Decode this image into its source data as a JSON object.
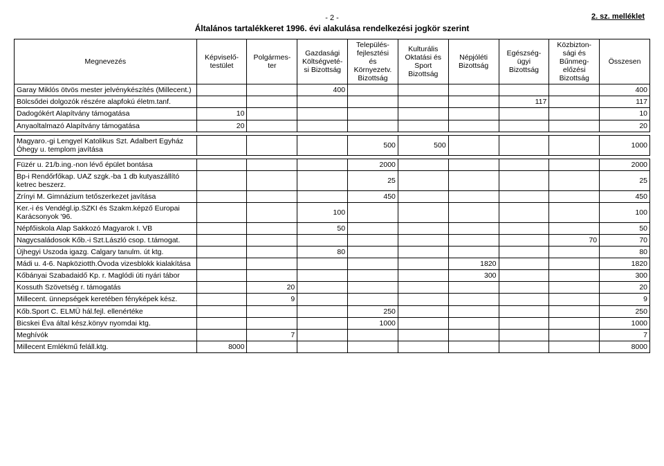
{
  "page_indicator": "- 2 -",
  "title": "Általános tartalékkeret 1996. évi alakulása rendelkezési jogkör szerint",
  "annex": "2. sz. melléklet",
  "columns": [
    "Megnevezés",
    "Képviselő-\ntestület",
    "Polgármes-\nter",
    "Gazdasági\nKöltségveté-\nsi Bizottság",
    "Település-\nfejlesztési\nés\nKörnyezetv.\nBizottság",
    "Kulturális\nOktatási és\nSport\nBizottság",
    "Népjóléti\nBizottság",
    "Egészség-\nügyi\nBizottság",
    "Közbizton-\nsági és\nBűnmeg-\nelőzési\nBizottság",
    "Összesen"
  ],
  "rows": [
    {
      "name": "Garay Miklós ötvös mester jelvénykészítés (Millecent.)",
      "v": [
        "",
        "",
        "400",
        "",
        "",
        "",
        "",
        "",
        "400"
      ]
    },
    {
      "name": "Bölcsődei dolgozók részére alapfokú életm.tanf.",
      "v": [
        "",
        "",
        "",
        "",
        "",
        "",
        "117",
        "",
        "117"
      ]
    },
    {
      "name": "Dadogókért Alapítvány támogatása",
      "v": [
        "10",
        "",
        "",
        "",
        "",
        "",
        "",
        "",
        "10"
      ]
    },
    {
      "name": "Anyaoltalmazó Alapítvány támogatása",
      "v": [
        "20",
        "",
        "",
        "",
        "",
        "",
        "",
        "",
        "20"
      ]
    }
  ],
  "rows2": [
    {
      "name": "Magyaro.-gi Lengyel Katolikus Szt. Adalbert Egyház Óhegy u. templom javítása",
      "v": [
        "",
        "",
        "",
        "500",
        "500",
        "",
        "",
        "",
        "1000"
      ]
    }
  ],
  "rows3": [
    {
      "name": "Füzér u. 21/b.ing.-non lévő épület bontása",
      "v": [
        "",
        "",
        "",
        "2000",
        "",
        "",
        "",
        "",
        "2000"
      ]
    },
    {
      "name": "Bp-i Rendőrfőkap. UAZ szgk.-ba 1 db kutyaszállító ketrec beszerz.",
      "v": [
        "",
        "",
        "",
        "25",
        "",
        "",
        "",
        "",
        "25"
      ]
    },
    {
      "name": "Zrínyi M. Gimnázium tetőszerkezet javítása",
      "v": [
        "",
        "",
        "",
        "450",
        "",
        "",
        "",
        "",
        "450"
      ]
    },
    {
      "name": "Ker.-i és Vendégl.ip.SZKI és Szakm.képző Europai Karácsonyok '96.",
      "v": [
        "",
        "",
        "100",
        "",
        "",
        "",
        "",
        "",
        "100"
      ]
    },
    {
      "name": "Népfőiskola Alap Sakkozó Magyarok I. VB",
      "v": [
        "",
        "",
        "50",
        "",
        "",
        "",
        "",
        "",
        "50"
      ]
    },
    {
      "name": "Nagycsaládosok Kőb.-i Szt.László csop. t.támogat.",
      "v": [
        "",
        "",
        "",
        "",
        "",
        "",
        "",
        "70",
        "70"
      ]
    },
    {
      "name": "Újhegyi Uszoda igazg. Calgary tanulm. út ktg.",
      "v": [
        "",
        "",
        "80",
        "",
        "",
        "",
        "",
        "",
        "80"
      ]
    },
    {
      "name": "Mádi u. 4-6. Napköziotth.Óvoda vizesblokk kialakítása",
      "v": [
        "",
        "",
        "",
        "",
        "",
        "1820",
        "",
        "",
        "1820"
      ]
    },
    {
      "name": "Kőbányai Szabadaidő Kp. r. Maglódi úti nyári tábor",
      "v": [
        "",
        "",
        "",
        "",
        "",
        "300",
        "",
        "",
        "300"
      ]
    },
    {
      "name": "Kossuth Szövetség r. támogatás",
      "v": [
        "",
        "20",
        "",
        "",
        "",
        "",
        "",
        "",
        "20"
      ]
    },
    {
      "name": "Millecent. ünnepségek keretében fényképek kész.",
      "v": [
        "",
        "9",
        "",
        "",
        "",
        "",
        "",
        "",
        "9"
      ]
    },
    {
      "name": "Kőb.Sport C. ELMÜ hál.fejl. ellenértéke",
      "v": [
        "",
        "",
        "",
        "250",
        "",
        "",
        "",
        "",
        "250"
      ]
    },
    {
      "name": "Bicskei Éva által kész.könyv nyomdai ktg.",
      "v": [
        "",
        "",
        "",
        "1000",
        "",
        "",
        "",
        "",
        "1000"
      ]
    },
    {
      "name": "Meghívók",
      "v": [
        "",
        "7",
        "",
        "",
        "",
        "",
        "",
        "",
        "7"
      ]
    },
    {
      "name": "Millecent Emlékmű feláll.ktg.",
      "v": [
        "8000",
        "",
        "",
        "",
        "",
        "",
        "",
        "",
        "8000"
      ]
    }
  ]
}
